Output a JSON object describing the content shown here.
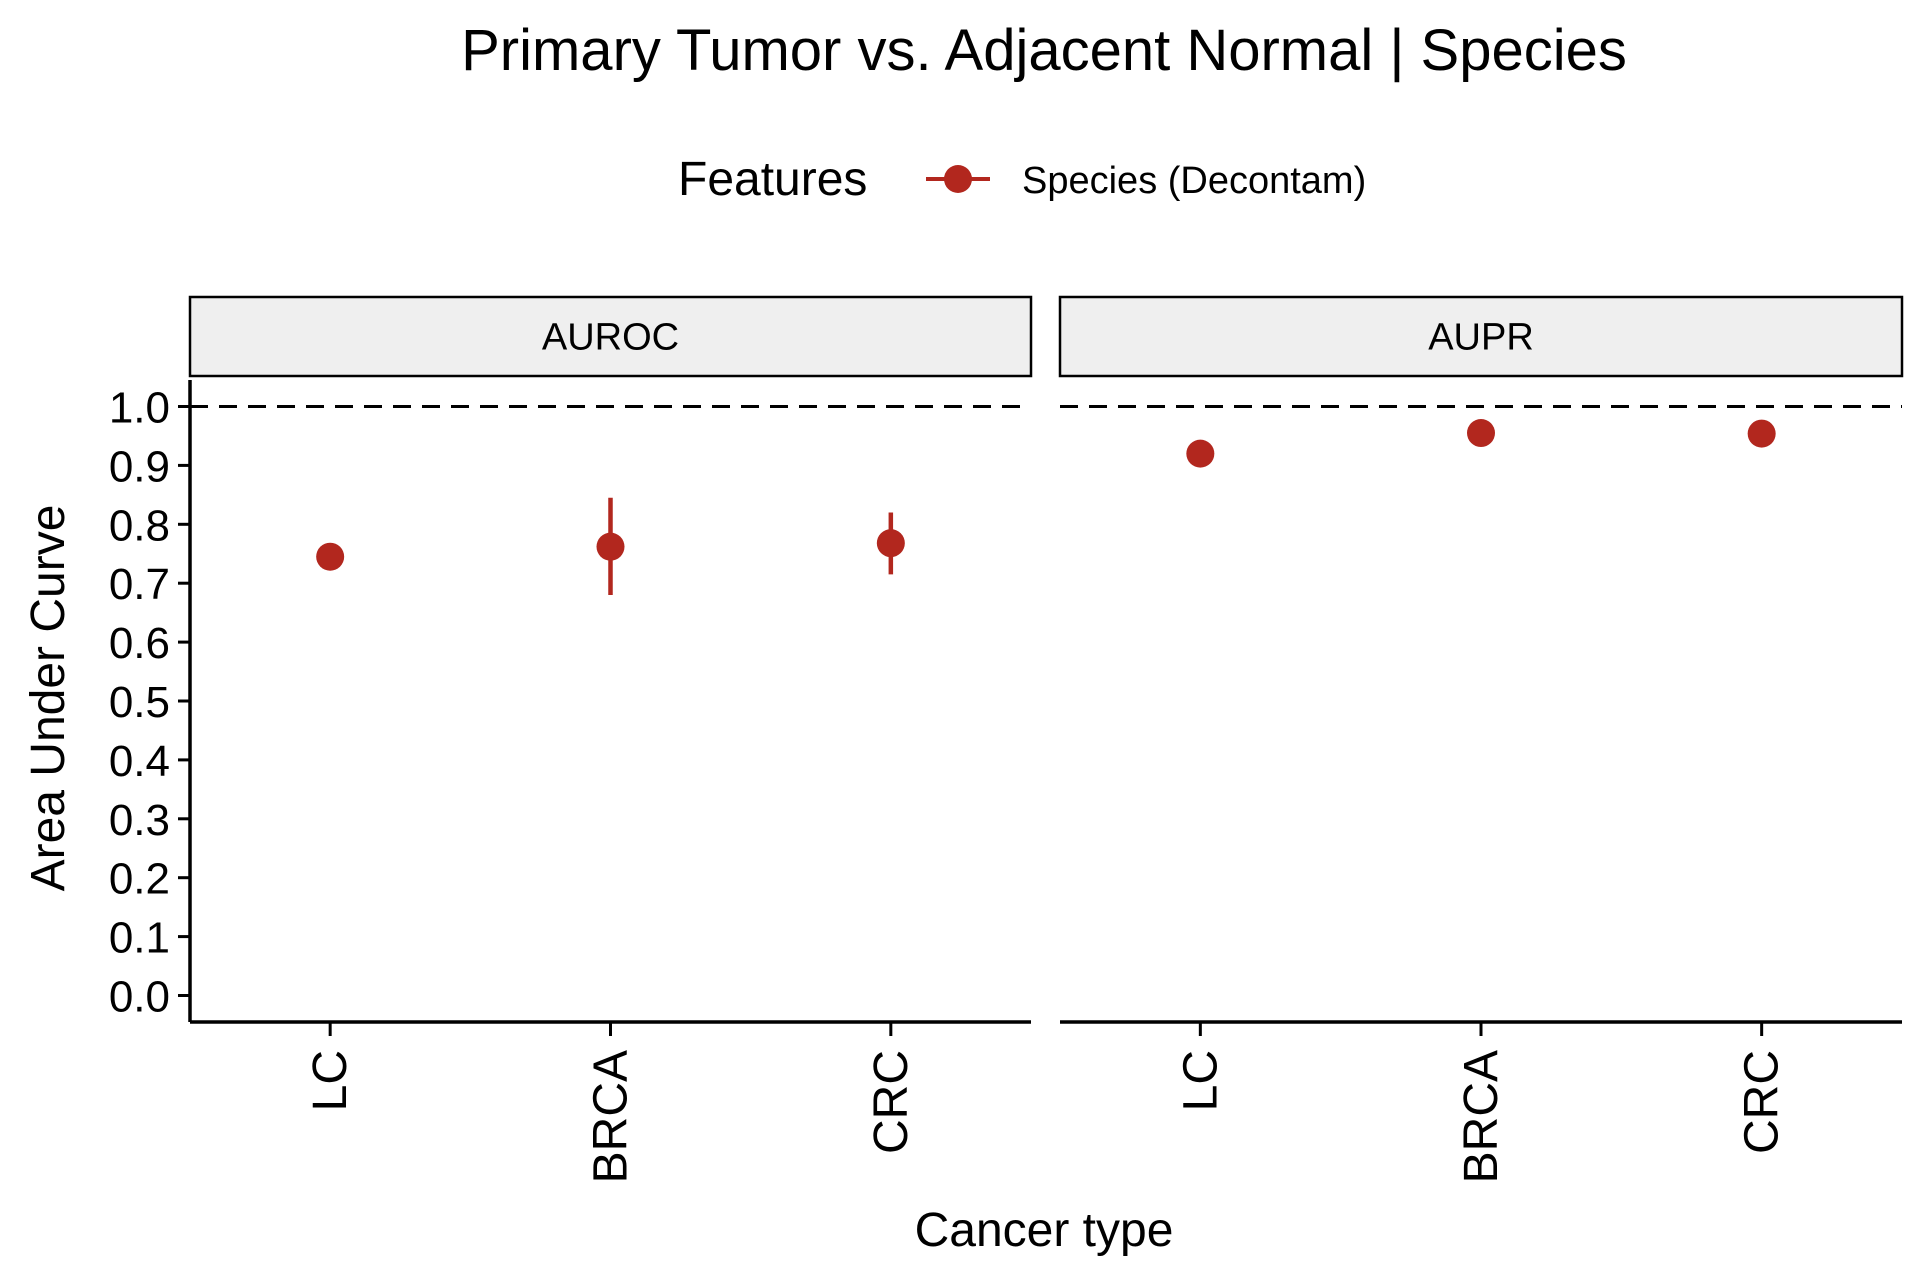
{
  "chart_data": {
    "type": "scatter",
    "title": "Primary Tumor vs. Adjacent Normal | Species",
    "xlabel": "Cancer type",
    "ylabel": "Area Under Curve",
    "legend": {
      "title": "Features",
      "entries": [
        "Species (Decontam)"
      ],
      "placement": "top"
    },
    "ylim": [
      -0.045,
      1.045
    ],
    "yticks": [
      "0.0",
      "0.1",
      "0.2",
      "0.3",
      "0.4",
      "0.5",
      "0.6",
      "0.7",
      "0.8",
      "0.9",
      "1.0"
    ],
    "categories": [
      "LC",
      "BRCA",
      "CRC"
    ],
    "reference_line": 1.0,
    "grid": false,
    "colors": {
      "point": "#B2271E",
      "reference_line": "#000000",
      "strip_fill": "#EFEFEF"
    },
    "panels": [
      {
        "name": "AUROC",
        "series": [
          {
            "name": "Species (Decontam)",
            "values": [
              0.745,
              0.762,
              0.768
            ],
            "lower": [
              null,
              0.68,
              0.715
            ],
            "upper": [
              null,
              0.845,
              0.82
            ]
          }
        ]
      },
      {
        "name": "AUPR",
        "series": [
          {
            "name": "Species (Decontam)",
            "values": [
              0.92,
              0.955,
              0.954
            ],
            "lower": [
              null,
              null,
              null
            ],
            "upper": [
              null,
              null,
              null
            ]
          }
        ]
      }
    ]
  }
}
